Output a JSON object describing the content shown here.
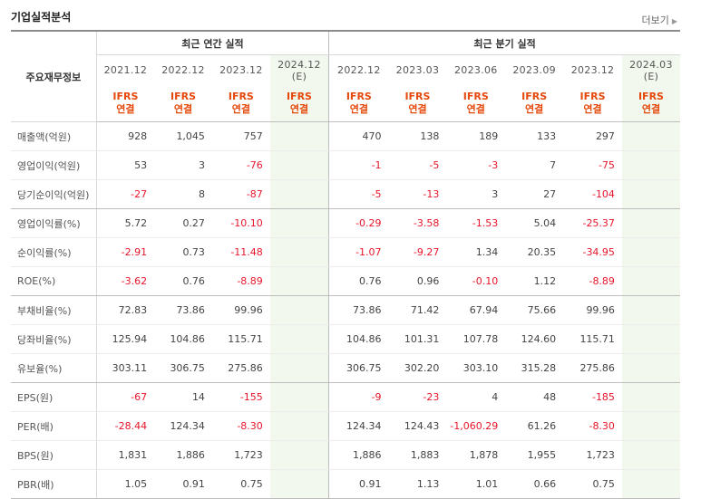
{
  "header": {
    "title": "기업실적분석",
    "more_label": "더보기"
  },
  "table": {
    "row_header": "주요재무정보",
    "groups": [
      {
        "label": "최근 연간 실적"
      },
      {
        "label": "최근 분기 실적"
      }
    ],
    "columns": [
      {
        "period": "2021.12",
        "est": "",
        "std": "IFRS",
        "type": "연결"
      },
      {
        "period": "2022.12",
        "est": "",
        "std": "IFRS",
        "type": "연결"
      },
      {
        "period": "2023.12",
        "est": "",
        "std": "IFRS",
        "type": "연결"
      },
      {
        "period": "2024.12",
        "est": "(E)",
        "std": "IFRS",
        "type": "연결"
      },
      {
        "period": "2022.12",
        "est": "",
        "std": "IFRS",
        "type": "연결"
      },
      {
        "period": "2023.03",
        "est": "",
        "std": "IFRS",
        "type": "연결"
      },
      {
        "period": "2023.06",
        "est": "",
        "std": "IFRS",
        "type": "연결"
      },
      {
        "period": "2023.09",
        "est": "",
        "std": "IFRS",
        "type": "연결"
      },
      {
        "period": "2023.12",
        "est": "",
        "std": "IFRS",
        "type": "연결"
      },
      {
        "period": "2024.03",
        "est": "(E)",
        "std": "IFRS",
        "type": "연결"
      }
    ],
    "rows": [
      {
        "label": "매출액(억원)",
        "values": [
          "928",
          "1,045",
          "757",
          "",
          "470",
          "138",
          "189",
          "133",
          "297",
          ""
        ]
      },
      {
        "label": "영업이익(억원)",
        "values": [
          "53",
          "3",
          "-76",
          "",
          "-1",
          "-5",
          "-3",
          "7",
          "-75",
          ""
        ]
      },
      {
        "label": "당기순이익(억원)",
        "values": [
          "-27",
          "8",
          "-87",
          "",
          "-5",
          "-13",
          "3",
          "27",
          "-104",
          ""
        ]
      },
      {
        "label": "영업이익률(%)",
        "values": [
          "5.72",
          "0.27",
          "-10.10",
          "",
          "-0.29",
          "-3.58",
          "-1.53",
          "5.04",
          "-25.37",
          ""
        ]
      },
      {
        "label": "순이익률(%)",
        "values": [
          "-2.91",
          "0.73",
          "-11.48",
          "",
          "-1.07",
          "-9.27",
          "1.34",
          "20.35",
          "-34.95",
          ""
        ]
      },
      {
        "label": "ROE(%)",
        "values": [
          "-3.62",
          "0.76",
          "-8.89",
          "",
          "0.76",
          "0.96",
          "-0.10",
          "1.12",
          "-8.89",
          ""
        ]
      },
      {
        "label": "부채비율(%)",
        "values": [
          "72.83",
          "73.86",
          "99.96",
          "",
          "73.86",
          "71.42",
          "67.94",
          "75.66",
          "99.96",
          ""
        ]
      },
      {
        "label": "당좌비율(%)",
        "values": [
          "125.94",
          "104.86",
          "115.71",
          "",
          "104.86",
          "101.31",
          "107.78",
          "124.60",
          "115.71",
          ""
        ]
      },
      {
        "label": "유보율(%)",
        "values": [
          "303.11",
          "306.75",
          "275.86",
          "",
          "306.75",
          "302.20",
          "303.10",
          "315.28",
          "275.86",
          ""
        ]
      },
      {
        "label": "EPS(원)",
        "values": [
          "-67",
          "14",
          "-155",
          "",
          "-9",
          "-23",
          "4",
          "48",
          "-185",
          ""
        ]
      },
      {
        "label": "PER(배)",
        "values": [
          "-28.44",
          "124.34",
          "-8.30",
          "",
          "124.34",
          "124.43",
          "-1,060.29",
          "61.26",
          "-8.30",
          ""
        ]
      },
      {
        "label": "BPS(원)",
        "values": [
          "1,831",
          "1,886",
          "1,723",
          "",
          "1,886",
          "1,883",
          "1,878",
          "1,955",
          "1,723",
          ""
        ]
      },
      {
        "label": "PBR(배)",
        "values": [
          "1.05",
          "0.91",
          "0.75",
          "",
          "0.91",
          "1.13",
          "1.01",
          "0.66",
          "0.75",
          ""
        ]
      }
    ],
    "group_ends": [
      2,
      5,
      8,
      12
    ],
    "colors": {
      "negative": "#e8152b",
      "ifrs": "#e5480b",
      "estimate_bg": "#f2f8ee"
    }
  }
}
